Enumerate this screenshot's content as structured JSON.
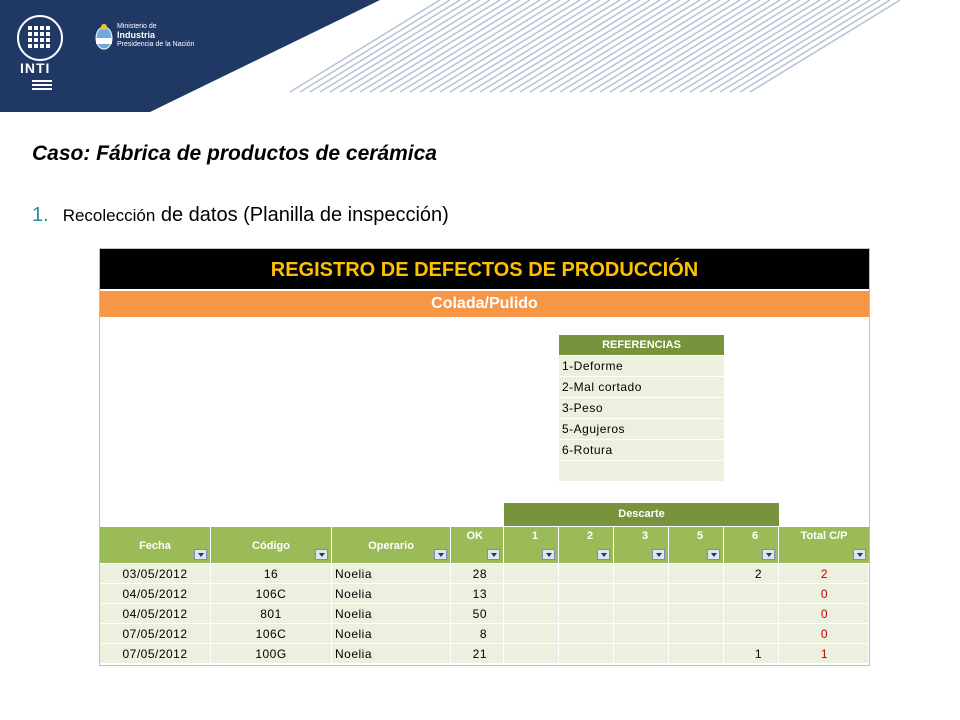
{
  "header": {
    "logo_text": "INTI",
    "ministry_line1": "Ministerio de",
    "ministry_line2": "Industria",
    "ministry_line3": "Presidencia de la Nación",
    "colors": {
      "banner": "#1f3864",
      "stripes": "#c9d3e3"
    }
  },
  "slide": {
    "case_title": "Caso: Fábrica de productos de cerámica",
    "step_number": "1.",
    "step_small": "Recolección",
    "step_text": "de datos (Planilla de inspección)"
  },
  "sheet": {
    "title": "REGISTRO DE DEFECTOS DE PRODUCCIÓN",
    "subtitle": "Colada/Pulido",
    "references": {
      "heading": "REFERENCIAS",
      "items": [
        "1-Deforme",
        "2-Mal cortado",
        "3-Peso",
        "5-Agujeros",
        "6-Rotura",
        ""
      ]
    },
    "group_header": "Descarte",
    "columns": [
      "Fecha",
      "Código",
      "Operario",
      "OK",
      "1",
      "2",
      "3",
      "5",
      "6",
      "Total C/P"
    ],
    "rows": [
      [
        "03/05/2012",
        "16",
        "Noelia",
        "28",
        "",
        "",
        "",
        "",
        "2",
        "2"
      ],
      [
        "04/05/2012",
        "106C",
        "Noelia",
        "13",
        "",
        "",
        "",
        "",
        "",
        "0"
      ],
      [
        "04/05/2012",
        "801",
        "Noelia",
        "50",
        "",
        "",
        "",
        "",
        "",
        "0"
      ],
      [
        "07/05/2012",
        "106C",
        "Noelia",
        "8",
        "",
        "",
        "",
        "",
        "",
        "0"
      ],
      [
        "07/05/2012",
        "100G",
        "Noelia",
        "21",
        "",
        "",
        "",
        "",
        "1",
        "1"
      ]
    ]
  }
}
